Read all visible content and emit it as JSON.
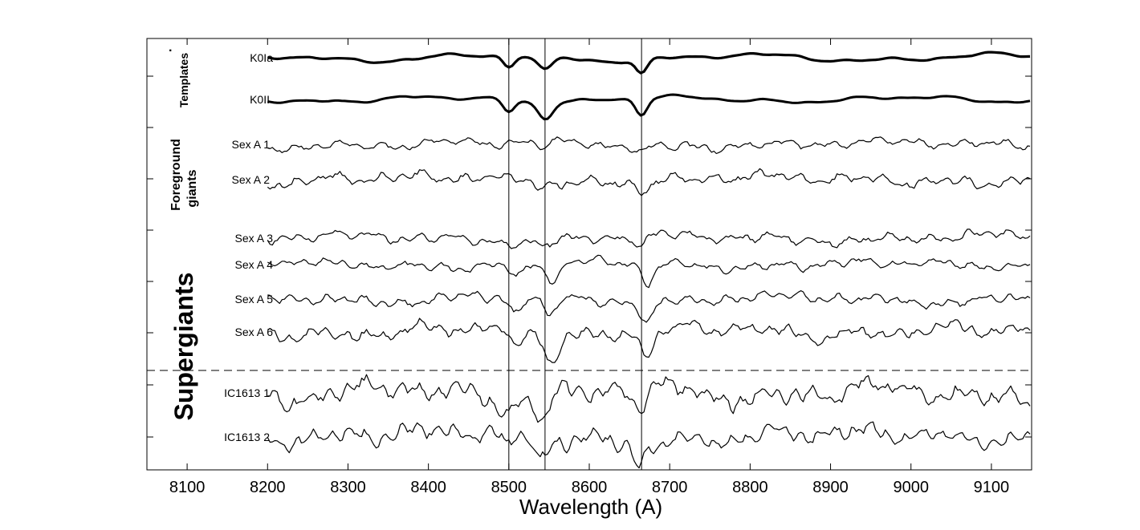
{
  "chart_data": {
    "type": "line",
    "title": "",
    "xlabel": "Wavelength (A)",
    "ylabel": "",
    "xlim": [
      8050,
      9150
    ],
    "x_ticks": [
      8100,
      8200,
      8300,
      8400,
      8500,
      8600,
      8700,
      8800,
      8900,
      9000,
      9100
    ],
    "x_tick_labels": [
      "8100",
      "8200",
      "8300",
      "8400",
      "8500",
      "8600",
      "8700",
      "8800",
      "8900",
      "9000",
      "9100"
    ],
    "x_range_of_spectra": [
      8200,
      9150
    ],
    "vertical_lines_x": [
      8500,
      8545,
      8665
    ],
    "separator": "dashed",
    "grid": false,
    "groups": [
      {
        "label": "Templates",
        "marker": "·",
        "members": [
          "K0Ia",
          "K0II"
        ]
      },
      {
        "label": "Foreground giants",
        "members": [
          "Sex A  1",
          "Sex A 2"
        ]
      },
      {
        "label": "Supergiants",
        "members": [
          "Sex A  3",
          "Sex A  4",
          "Sex A  5",
          "Sex A  6",
          "IC1613 1",
          "IC1613 2"
        ]
      }
    ],
    "group_label_lines": {
      "templates": "Templates",
      "foreground_1": "Foreground",
      "foreground_2": "giants",
      "supergiants": "Supergiants",
      "templates_marker": "·"
    },
    "series": [
      {
        "name": "K0Ia",
        "style": "thick"
      },
      {
        "name": "K0II",
        "style": "thick"
      },
      {
        "name": "Sex A  1",
        "style": "thin"
      },
      {
        "name": "Sex A 2",
        "style": "thin"
      },
      {
        "name": "Sex A  3",
        "style": "thin"
      },
      {
        "name": "Sex A  4",
        "style": "thin"
      },
      {
        "name": "Sex A  5",
        "style": "thin"
      },
      {
        "name": "Sex A  6",
        "style": "thin"
      },
      {
        "name": "IC1613 1",
        "style": "thin"
      },
      {
        "name": "IC1613 2",
        "style": "thin"
      }
    ],
    "absorption_features_x": [
      [
        8500,
        8545,
        8665
      ],
      [
        8500,
        8545,
        8665
      ],
      [
        8545,
        8665
      ],
      [
        8545,
        8665
      ],
      [
        8545,
        8665
      ],
      [
        8510,
        8555,
        8672
      ],
      [
        8508,
        8552,
        8672
      ],
      [
        8510,
        8552,
        8672
      ],
      [
        8498,
        8542,
        8664
      ],
      [
        8498,
        8540,
        8662
      ]
    ]
  }
}
